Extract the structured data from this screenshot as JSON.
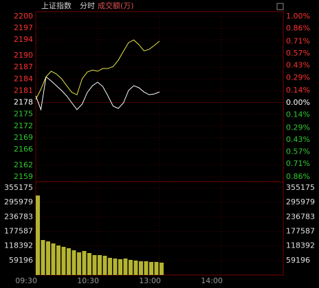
{
  "header": {
    "index_name": "上证指数",
    "mode": "分时",
    "volume_label": "成交额(万)"
  },
  "chart_data": [
    {
      "type": "line",
      "x": [
        0,
        5,
        10,
        15,
        20,
        25,
        30,
        35,
        40,
        45,
        50,
        55,
        60,
        65,
        70,
        75,
        80,
        85,
        90,
        95,
        100,
        105,
        110,
        115,
        120
      ],
      "xlim": [
        0,
        240
      ],
      "series": [
        {
          "color": "#ffffff",
          "values": [
            2179.7,
            2176.2,
            2184.6,
            2183.5,
            2182.3,
            2181.1,
            2179.7,
            2177.9,
            2176.2,
            2177.6,
            2180.6,
            2182.3,
            2183.2,
            2182.1,
            2179.7,
            2177.1,
            2176.5,
            2177.9,
            2181.1,
            2182.3,
            2181.8,
            2180.7,
            2180.0,
            2180.2,
            2180.7
          ]
        },
        {
          "color": "#e8e84a",
          "values": [
            2178.8,
            2181.4,
            2184.6,
            2186.0,
            2185.3,
            2184.1,
            2182.3,
            2180.6,
            2180.0,
            2184.1,
            2185.8,
            2186.3,
            2186.0,
            2186.7,
            2186.7,
            2187.2,
            2188.8,
            2191.1,
            2193.3,
            2194.0,
            2192.8,
            2191.2,
            2191.6,
            2192.6,
            2193.7
          ]
        }
      ],
      "ylim": [
        2159,
        2200
      ],
      "yticks": [
        2200,
        2197,
        2194,
        2190,
        2187,
        2184,
        2181,
        2178,
        2175,
        2172,
        2169,
        2166,
        2162,
        2159
      ],
      "y2lim": [
        -0.86,
        1.0
      ],
      "y2ticks": [
        {
          "value": 1.0,
          "label": "1.00%"
        },
        {
          "value": 0.86,
          "label": "0.86%"
        },
        {
          "value": 0.71,
          "label": "0.71%"
        },
        {
          "value": 0.57,
          "label": "0.57%"
        },
        {
          "value": 0.43,
          "label": "0.43%"
        },
        {
          "value": 0.29,
          "label": "0.29%"
        },
        {
          "value": 0.14,
          "label": "0.14%"
        },
        {
          "value": 0,
          "label": "0.00%"
        },
        {
          "value": -0.14,
          "label": "0.14%"
        },
        {
          "value": -0.29,
          "label": "0.29%"
        },
        {
          "value": -0.43,
          "label": "0.43%"
        },
        {
          "value": -0.57,
          "label": "0.57%"
        },
        {
          "value": -0.71,
          "label": "0.71%"
        },
        {
          "value": -0.86,
          "label": "0.86%"
        }
      ],
      "up_color": "#ff3232",
      "down_color": "#32c832",
      "flat_color": "#ffffff",
      "grid": true
    },
    {
      "type": "bar",
      "x": [
        0,
        5,
        10,
        15,
        20,
        25,
        30,
        35,
        40,
        45,
        50,
        55,
        60,
        65,
        70,
        75,
        80,
        85,
        90,
        95,
        100,
        105,
        110,
        115,
        120
      ],
      "xlim": [
        0,
        240
      ],
      "values": [
        324000,
        142600,
        137000,
        128700,
        120300,
        114700,
        109100,
        100700,
        92300,
        97900,
        89500,
        81100,
        81100,
        78300,
        69900,
        67100,
        64300,
        67100,
        61500,
        58700,
        55900,
        55900,
        53100,
        53100,
        50300
      ],
      "color": "#b4b432",
      "ylim": [
        0,
        355175
      ],
      "yticks": [
        355175,
        295979,
        236783,
        177587,
        118392,
        59196
      ],
      "xticks": [
        {
          "value": 0,
          "label": "09:30"
        },
        {
          "value": 60,
          "label": "10:30"
        },
        {
          "value": 120,
          "label": "13:00"
        },
        {
          "value": 180,
          "label": "14:00"
        }
      ],
      "tick_color": "#e0e0e0",
      "grid": true
    }
  ]
}
